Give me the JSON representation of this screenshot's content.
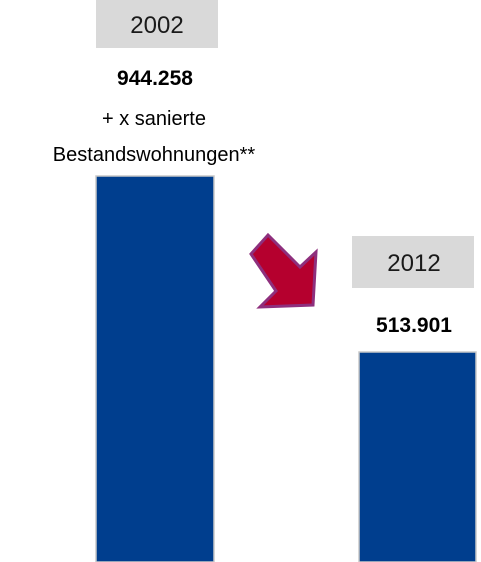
{
  "chart_data": {
    "type": "bar",
    "categories": [
      "2002",
      "2012"
    ],
    "values": [
      944258,
      513901
    ],
    "value_labels": [
      "944.258",
      "513.901"
    ],
    "annotation_2002": [
      "+ x sanierte",
      "Bestandswohnungen**"
    ],
    "title": "",
    "xlabel": "",
    "ylabel": "",
    "ylim": [
      0,
      944258
    ],
    "grid": false,
    "legend": "none",
    "colors": {
      "bar": "#003e8e",
      "bar_outline": "#c8c8c8",
      "year_box": "#d9d9d9",
      "arrow_fill": "#b5002e",
      "arrow_outline": "#8e2f7d"
    },
    "decoration": "down-right-arrow-icon"
  }
}
